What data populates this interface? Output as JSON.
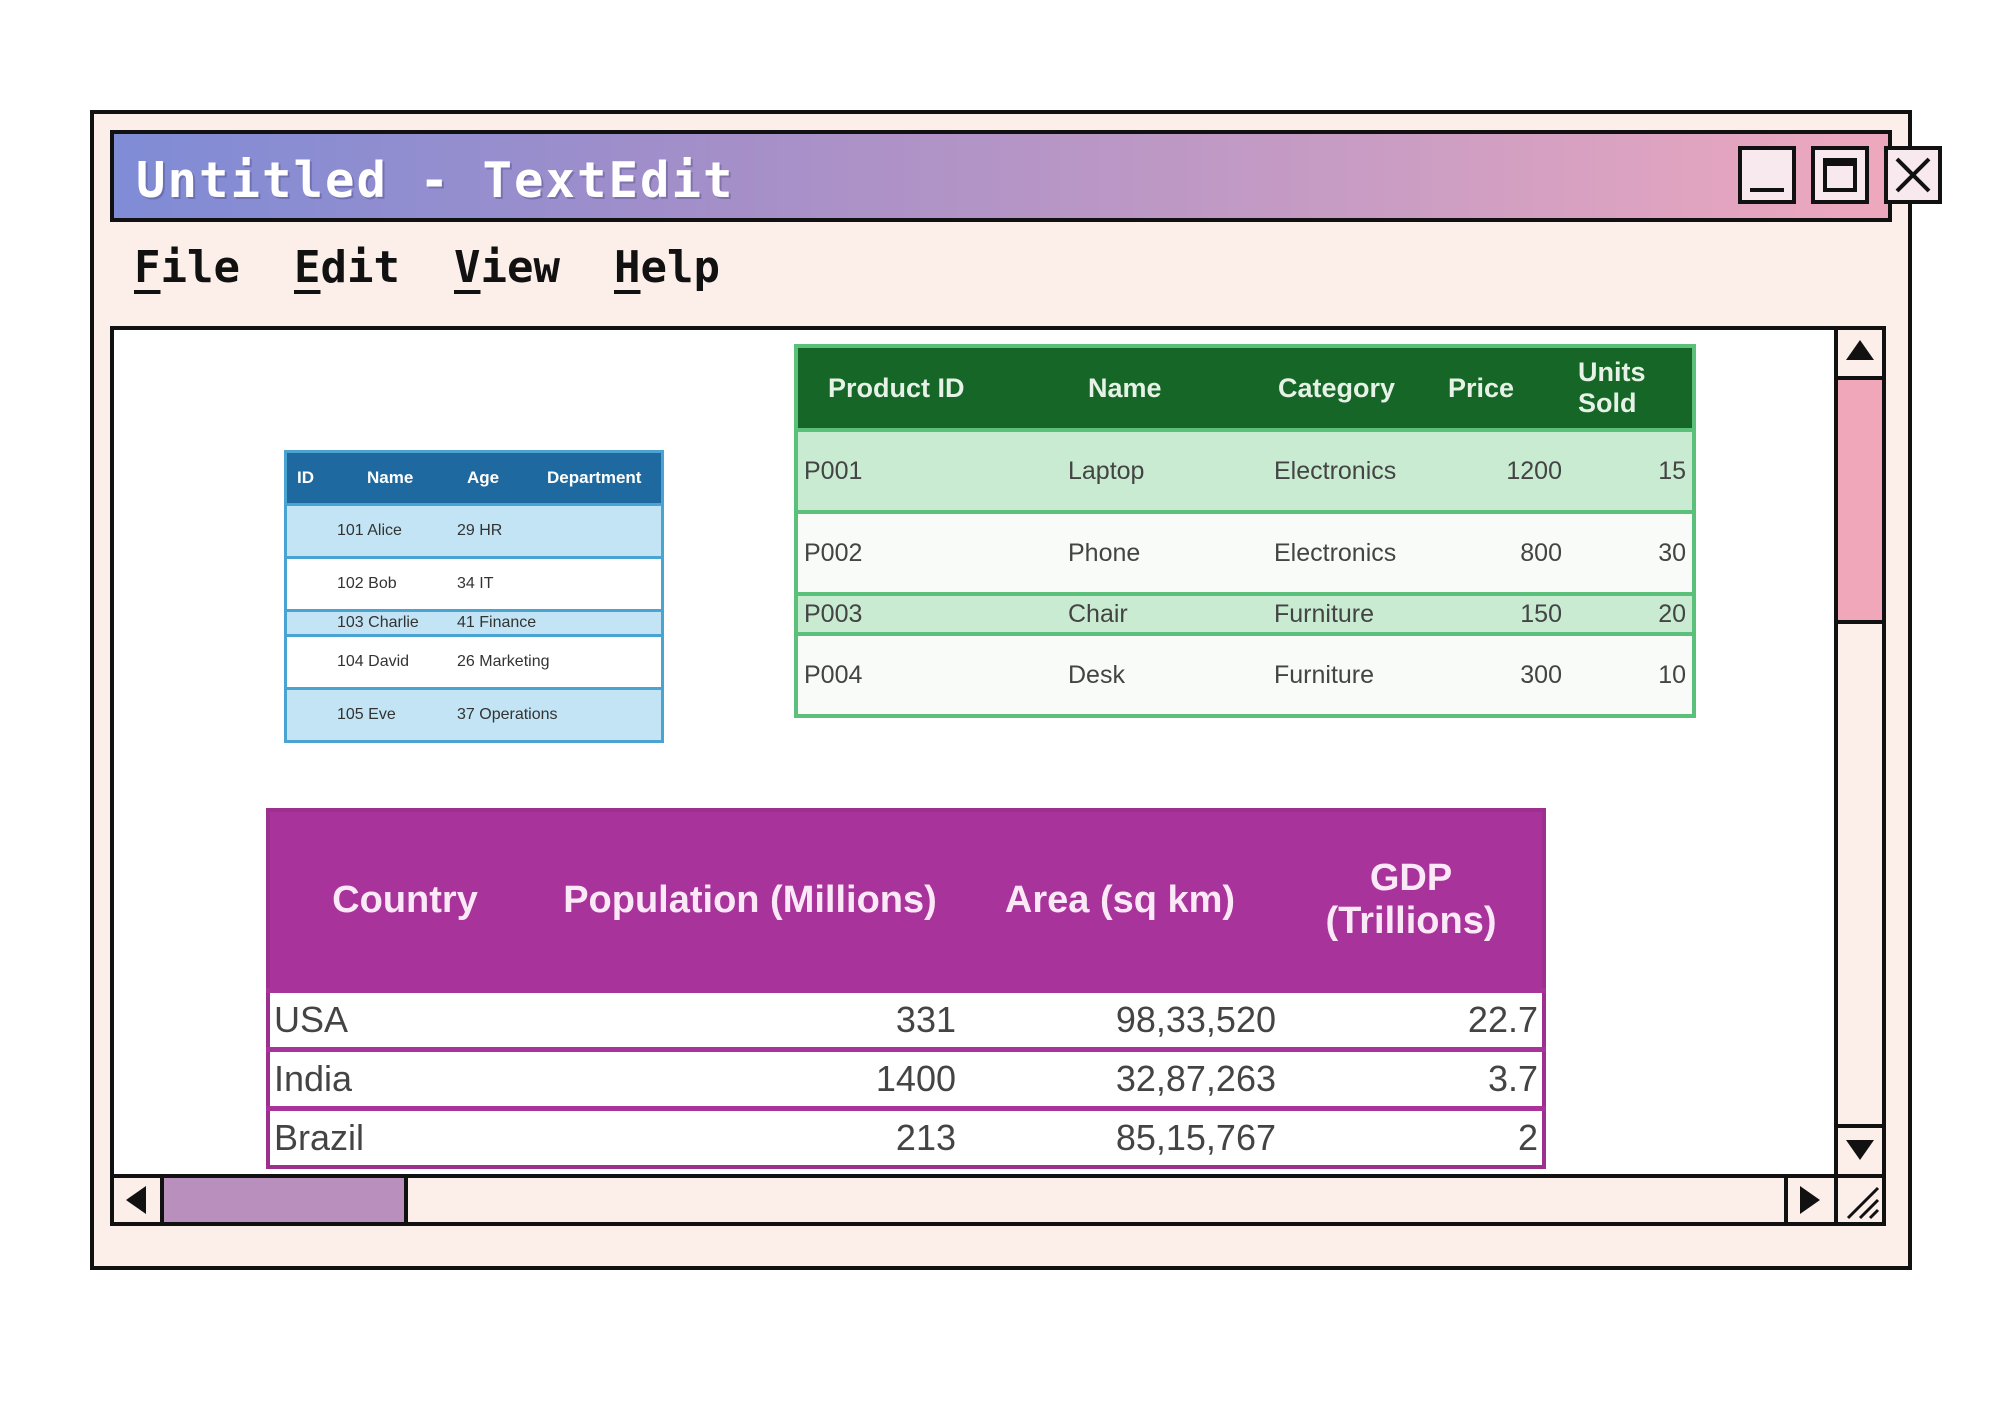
{
  "window": {
    "title": "Untitled - TextEdit",
    "controls": {
      "minimize": "minimize",
      "maximize": "maximize",
      "close": "close"
    }
  },
  "menu": {
    "items": [
      {
        "first": "F",
        "rest": "ile"
      },
      {
        "first": "E",
        "rest": "dit"
      },
      {
        "first": "V",
        "rest": "iew"
      },
      {
        "first": "H",
        "rest": "elp"
      }
    ]
  },
  "employees": {
    "headers": [
      "ID",
      "Name",
      "Age",
      "Department"
    ],
    "rows": [
      {
        "id_name": "101 Alice",
        "age_dept": "29 HR"
      },
      {
        "id_name": "102 Bob",
        "age_dept": "34 IT"
      },
      {
        "id_name": "103 Charlie",
        "age_dept": "41 Finance"
      },
      {
        "id_name": "104 David",
        "age_dept": "26 Marketing"
      },
      {
        "id_name": "105 Eve",
        "age_dept": "37 Operations"
      }
    ]
  },
  "products": {
    "headers": [
      "Product ID",
      "Name",
      "Category",
      "Price",
      "Units Sold"
    ],
    "rows": [
      [
        "P001",
        "Laptop",
        "Electronics",
        "1200",
        "15"
      ],
      [
        "P002",
        "Phone",
        "Electronics",
        "800",
        "30"
      ],
      [
        "P003",
        "Chair",
        "Furniture",
        "150",
        "20"
      ],
      [
        "P004",
        "Desk",
        "Furniture",
        "300",
        "10"
      ]
    ]
  },
  "countries": {
    "headers": [
      "Country",
      "Population (Millions)",
      "Area (sq km)",
      "GDP (Trillions)"
    ],
    "rows": [
      [
        "USA",
        "331",
        "98,33,520",
        "22.7"
      ],
      [
        "India",
        "1400",
        "32,87,263",
        "3.7"
      ],
      [
        "Brazil",
        "213",
        "85,15,767",
        "2"
      ]
    ]
  },
  "colors": {
    "employees_header": "#1e6aa0",
    "products_header": "#156627",
    "countries_header": "#a8339b",
    "scroll_thumb_v": "#f1a7ba",
    "scroll_thumb_h": "#b98fbe"
  }
}
